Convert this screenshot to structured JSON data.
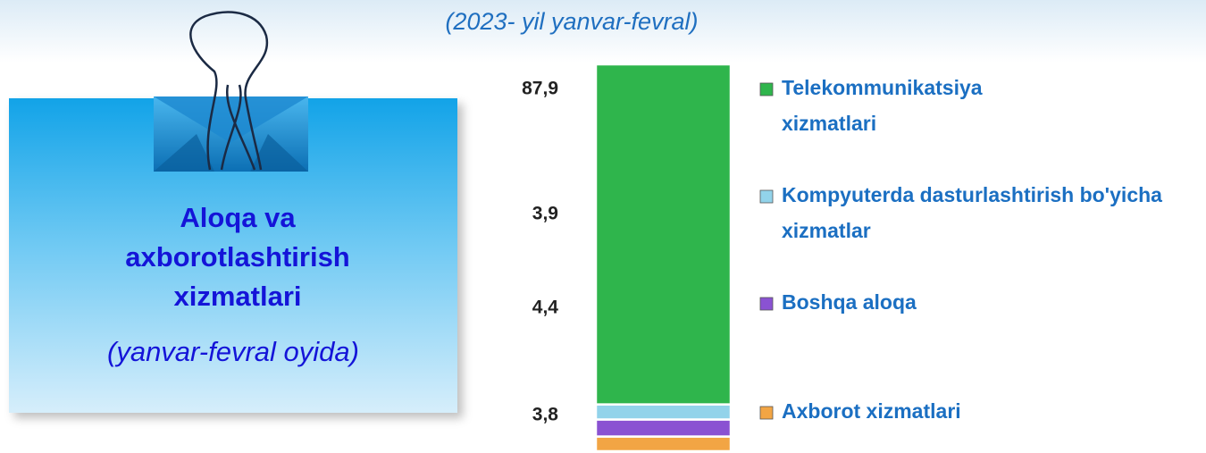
{
  "chart_data": {
    "type": "stacked-bar",
    "subtitle": "(2023- yil yanvar-fevral)",
    "categories": [
      null
    ],
    "series": [
      {
        "name": "Telekommunikatsiya xizmatlari",
        "color": "#2fb54c",
        "values": [
          87.9
        ],
        "value_labels": [
          "87,9"
        ]
      },
      {
        "name": "Kompyuterda dasturlashtirish bo'yicha xizmatlar",
        "color": "#92d3ea",
        "values": [
          3.9
        ],
        "value_labels": [
          "3,9"
        ]
      },
      {
        "name": "Boshqa aloqa",
        "color": "#8a52d2",
        "values": [
          4.4
        ],
        "value_labels": [
          "4,4"
        ]
      },
      {
        "name": "Axborot xizmatlari",
        "color": "#f2a544",
        "values": [
          3.8
        ],
        "value_labels": [
          "3,8"
        ]
      }
    ]
  },
  "card": {
    "title": "Aloqa va axborotlashtirish xizmatlari",
    "subtitle": "(yanvar-fevral oyida)"
  }
}
